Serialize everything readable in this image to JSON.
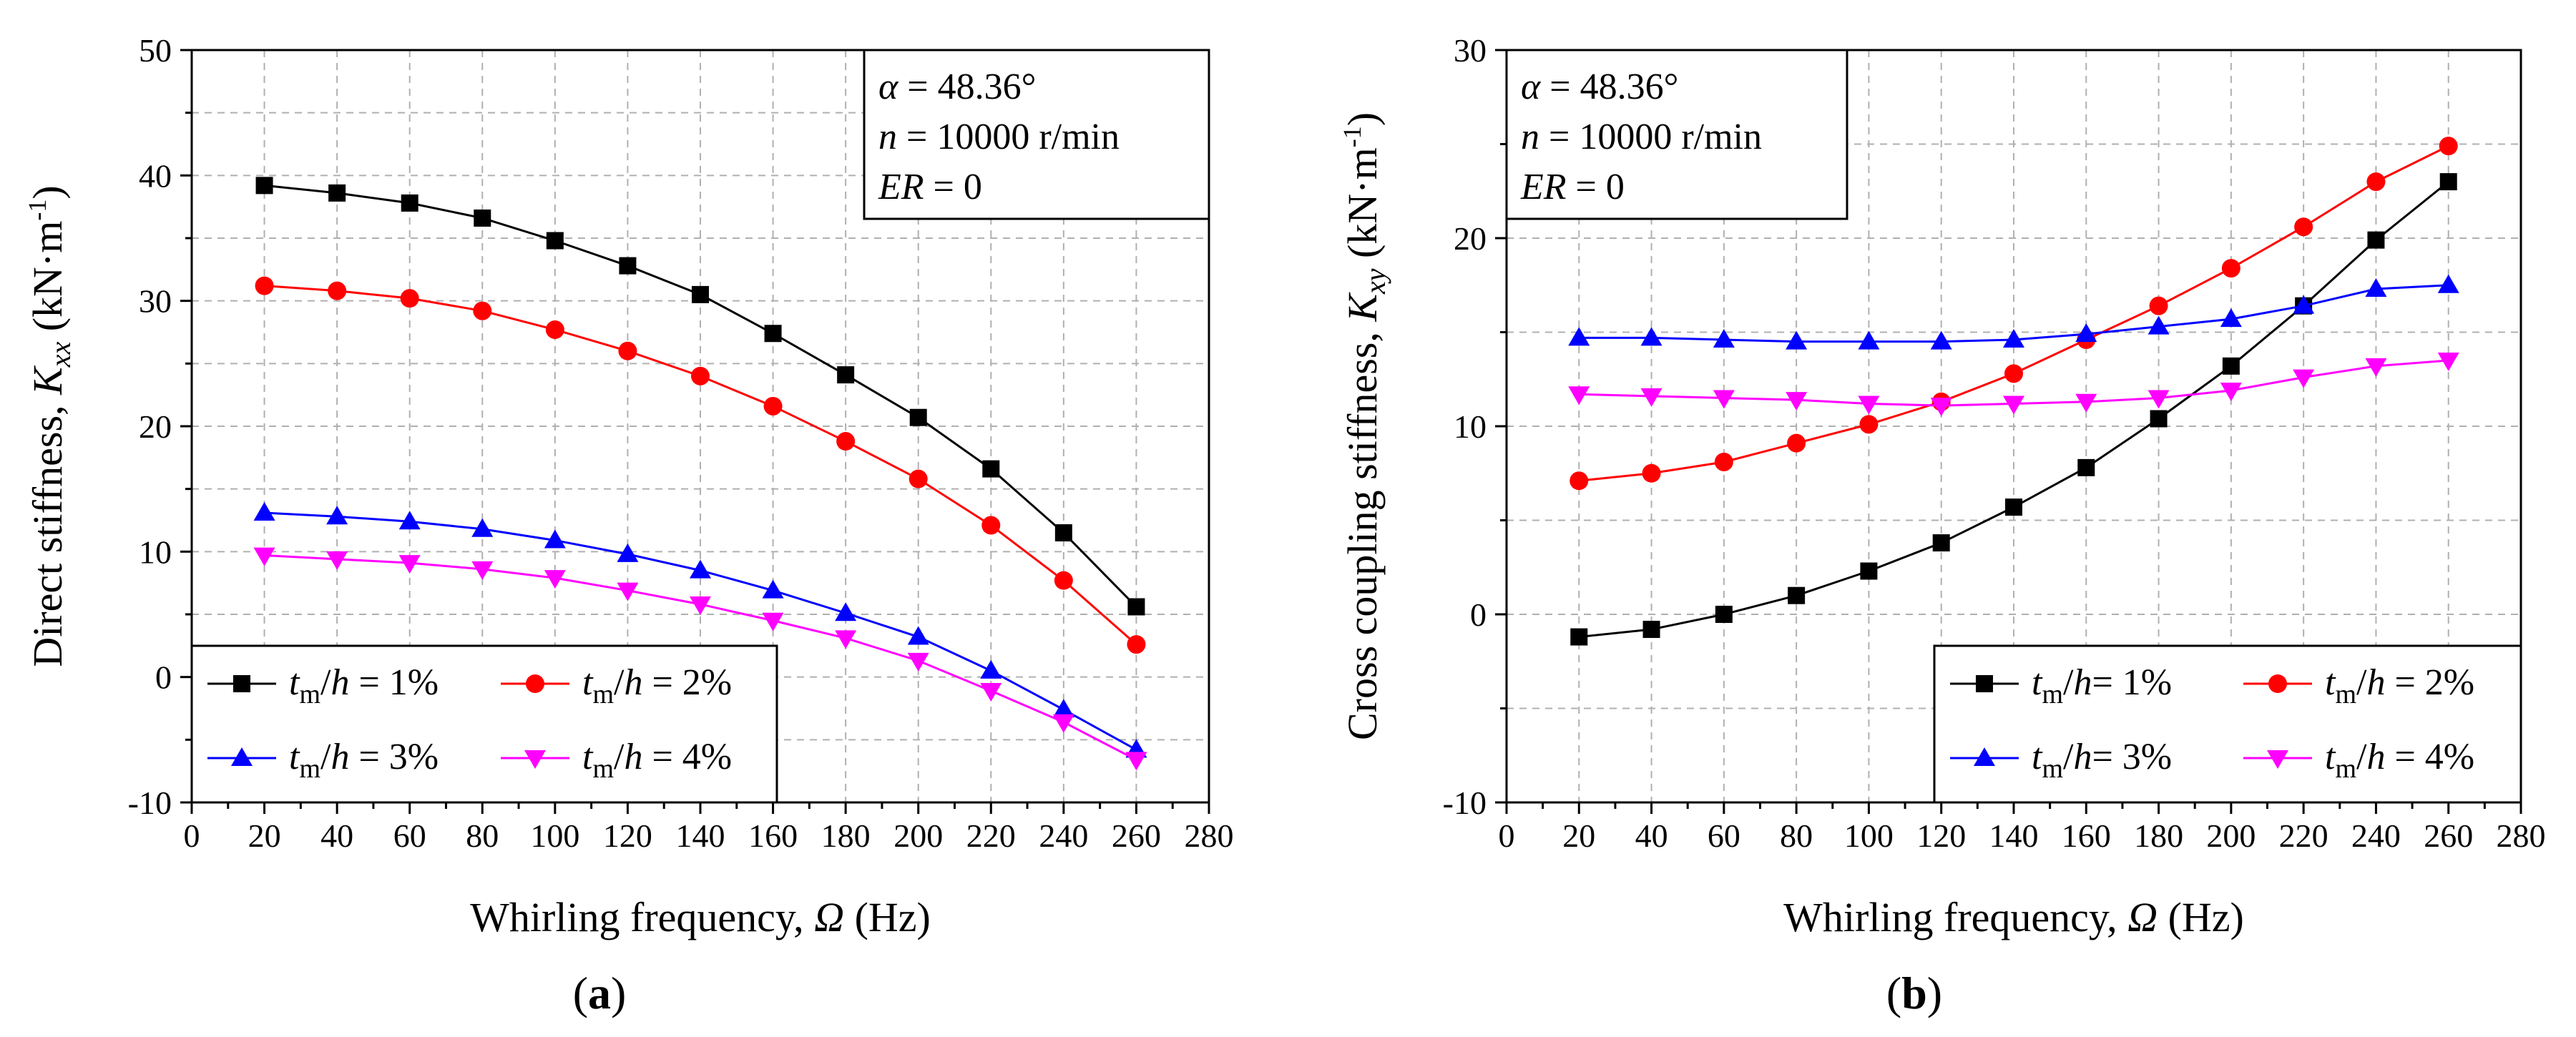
{
  "figure_labels": [
    "a",
    "b"
  ],
  "chart_data": [
    {
      "type": "line",
      "panel_label": "a",
      "title": "",
      "xlabel": {
        "text": "Whirling frequency, ",
        "symbol": "Ω",
        "unit": " (Hz)"
      },
      "ylabel": {
        "text": "Direct stiffness, ",
        "symbol": "K",
        "subscript": "xx",
        "unit_pre": "  (kN·m",
        "unit_sup": "-1",
        "unit_post": ")"
      },
      "xlim": [
        0,
        280
      ],
      "ylim": [
        -10,
        50
      ],
      "xticks": [
        0,
        20,
        40,
        60,
        80,
        100,
        120,
        140,
        160,
        180,
        200,
        220,
        240,
        260,
        280
      ],
      "yticks": [
        -10,
        0,
        10,
        20,
        30,
        40,
        50
      ],
      "grid": true,
      "annotation": [
        {
          "sym": "α",
          "rest": " = 48.36°"
        },
        {
          "sym": "n",
          "rest": " = 10000 r/min"
        },
        {
          "sym": "ER",
          "rest": " = 0"
        }
      ],
      "annotation_position": "top-right",
      "legend_position": "bottom-left",
      "x": [
        20,
        40,
        60,
        80,
        100,
        120,
        140,
        160,
        180,
        200,
        220,
        240,
        260
      ],
      "series": [
        {
          "name": "tm/h = 1%",
          "t": "t",
          "sub": "m",
          "rest": "/h = 1%",
          "color": "#000000",
          "marker": "square",
          "values": [
            39.2,
            38.6,
            37.8,
            36.6,
            34.8,
            32.8,
            30.5,
            27.4,
            24.1,
            20.7,
            16.6,
            11.5,
            5.6
          ]
        },
        {
          "name": "tm/h = 2%",
          "t": "t",
          "sub": "m",
          "rest": "/h = 2%",
          "color": "#ff0000",
          "marker": "circle",
          "values": [
            31.2,
            30.8,
            30.2,
            29.2,
            27.7,
            26.0,
            24.0,
            21.6,
            18.8,
            15.8,
            12.1,
            7.7,
            2.6
          ]
        },
        {
          "name": "tm/h = 3%",
          "t": "t",
          "sub": "m",
          "rest": "/h = 3%",
          "color": "#0000ff",
          "marker": "triangle-up",
          "values": [
            13.1,
            12.8,
            12.4,
            11.8,
            10.9,
            9.8,
            8.5,
            6.9,
            5.1,
            3.2,
            0.5,
            -2.6,
            -5.8
          ]
        },
        {
          "name": "tm/h = 4%",
          "t": "t",
          "sub": "m",
          "rest": "/h = 4%",
          "color": "#ff00ff",
          "marker": "triangle-down",
          "values": [
            9.7,
            9.4,
            9.1,
            8.6,
            7.9,
            6.9,
            5.8,
            4.5,
            3.1,
            1.3,
            -1.1,
            -3.6,
            -6.6
          ]
        }
      ]
    },
    {
      "type": "line",
      "panel_label": "b",
      "title": "",
      "xlabel": {
        "text": "Whirling frequency, ",
        "symbol": "Ω",
        "unit": " (Hz)"
      },
      "ylabel": {
        "text": "Cross coupling stiffness, ",
        "symbol": "K",
        "subscript": "xy",
        "unit_pre": "  (kN·m",
        "unit_sup": "-1",
        "unit_post": ")"
      },
      "xlim": [
        0,
        280
      ],
      "ylim": [
        -10,
        30
      ],
      "xticks": [
        0,
        20,
        40,
        60,
        80,
        100,
        120,
        140,
        160,
        180,
        200,
        220,
        240,
        260,
        280
      ],
      "yticks": [
        -10,
        0,
        10,
        20,
        30
      ],
      "grid": true,
      "annotation": [
        {
          "sym": "α",
          "rest": " = 48.36°"
        },
        {
          "sym": "n",
          "rest": " = 10000 r/min"
        },
        {
          "sym": "ER",
          "rest": " = 0"
        }
      ],
      "annotation_position": "top-left",
      "legend_position": "bottom-right",
      "x": [
        20,
        40,
        60,
        80,
        100,
        120,
        140,
        160,
        180,
        200,
        220,
        240,
        260
      ],
      "series": [
        {
          "name": "tm/h= 1%",
          "t": "t",
          "sub": "m",
          "rest": "/h= 1%",
          "color": "#000000",
          "marker": "square",
          "values": [
            -1.2,
            -0.8,
            0.0,
            1.0,
            2.3,
            3.8,
            5.7,
            7.8,
            10.4,
            13.2,
            16.4,
            19.9,
            23.0
          ]
        },
        {
          "name": "tm/h = 2%",
          "t": "t",
          "sub": "m",
          "rest": "/h = 2%",
          "color": "#ff0000",
          "marker": "circle",
          "values": [
            7.1,
            7.5,
            8.1,
            9.1,
            10.1,
            11.3,
            12.8,
            14.6,
            16.4,
            18.4,
            20.6,
            23.0,
            24.9
          ]
        },
        {
          "name": "tm/h= 3%",
          "t": "t",
          "sub": "m",
          "rest": "/h= 3%",
          "color": "#0000ff",
          "marker": "triangle-up",
          "values": [
            14.7,
            14.7,
            14.6,
            14.5,
            14.5,
            14.5,
            14.6,
            14.9,
            15.3,
            15.7,
            16.4,
            17.3,
            17.5
          ]
        },
        {
          "name": "tm/h = 4%",
          "t": "t",
          "sub": "m",
          "rest": "/h = 4%",
          "color": "#ff00ff",
          "marker": "triangle-down",
          "values": [
            11.7,
            11.6,
            11.5,
            11.4,
            11.2,
            11.1,
            11.2,
            11.3,
            11.5,
            11.9,
            12.6,
            13.2,
            13.5
          ]
        }
      ]
    }
  ]
}
